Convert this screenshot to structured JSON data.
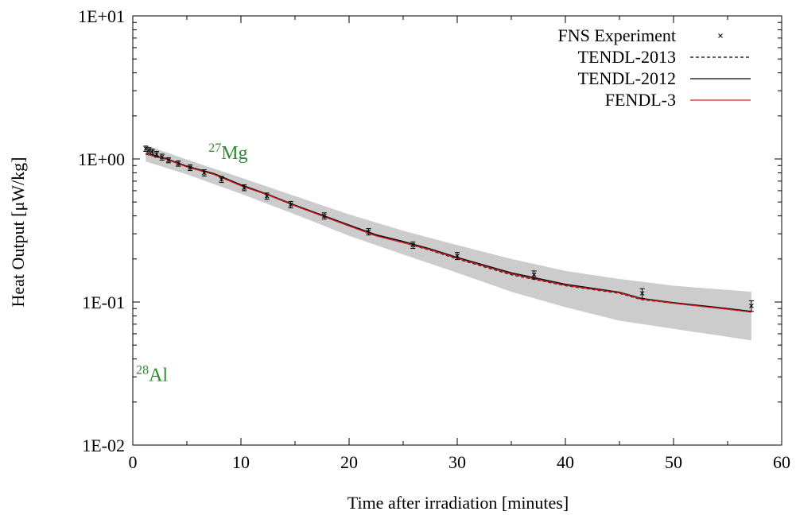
{
  "chart_data": {
    "type": "line",
    "xlabel": "Time after irradiation [minutes]",
    "ylabel": "Heat Output [μW/kg]",
    "xlim": [
      0,
      60
    ],
    "ylim": [
      0.01,
      10
    ],
    "y_scale": "log",
    "x_ticks": [
      "0",
      "10",
      "20",
      "30",
      "40",
      "50",
      "60"
    ],
    "x_tick_values": [
      0,
      10,
      20,
      30,
      40,
      50,
      60
    ],
    "y_ticks": [
      "1E-02",
      "1E-01",
      "1E+00",
      "1E+01"
    ],
    "y_tick_values": [
      0.01,
      0.1,
      1,
      10
    ],
    "grid": false,
    "legend_position": "top-right",
    "legend": [
      {
        "label": "FNS Experiment",
        "style": "marker",
        "color": "#000000"
      },
      {
        "label": "TENDL-2013",
        "style": "dashed",
        "color": "#000000"
      },
      {
        "label": "TENDL-2012",
        "style": "solid",
        "color": "#000000"
      },
      {
        "label": "FENDL-3",
        "style": "solid",
        "color": "#d62020"
      }
    ],
    "annotations": [
      {
        "sup": "27",
        "base": "Mg",
        "x": 7.0,
        "y": 1.0
      },
      {
        "sup": "28",
        "base": "Al",
        "x": 0.3,
        "y": 0.028
      }
    ],
    "experiment": {
      "x": [
        1.2,
        1.5,
        1.8,
        2.2,
        2.7,
        3.3,
        4.2,
        5.3,
        6.6,
        8.2,
        10.3,
        12.4,
        14.6,
        17.7,
        21.8,
        25.9,
        30.0,
        37.1,
        47.1,
        57.2
      ],
      "y": [
        1.18,
        1.15,
        1.12,
        1.08,
        1.03,
        0.98,
        0.93,
        0.87,
        0.8,
        0.72,
        0.63,
        0.55,
        0.48,
        0.4,
        0.31,
        0.25,
        0.21,
        0.155,
        0.115,
        0.094
      ],
      "err": [
        0.05,
        0.05,
        0.05,
        0.05,
        0.05,
        0.04,
        0.04,
        0.04,
        0.04,
        0.035,
        0.03,
        0.028,
        0.025,
        0.02,
        0.016,
        0.013,
        0.012,
        0.01,
        0.009,
        0.008
      ]
    },
    "series": [
      {
        "name": "TENDL-2013",
        "x": [
          1.2,
          3,
          5,
          7.5,
          10,
          12.5,
          15,
          17.5,
          20,
          22.5,
          25,
          27.5,
          30,
          35,
          40,
          45,
          47,
          50,
          55,
          57.2
        ],
        "y": [
          1.08,
          1.0,
          0.88,
          0.78,
          0.65,
          0.56,
          0.47,
          0.4,
          0.34,
          0.29,
          0.26,
          0.23,
          0.2,
          0.155,
          0.13,
          0.115,
          0.104,
          0.098,
          0.089,
          0.085
        ]
      },
      {
        "name": "TENDL-2012",
        "x": [
          1.2,
          3,
          5,
          7.5,
          10,
          12.5,
          15,
          17.5,
          20,
          22.5,
          25,
          27.5,
          30,
          35,
          40,
          45,
          47,
          50,
          55,
          57.2
        ],
        "y": [
          1.09,
          1.01,
          0.89,
          0.79,
          0.66,
          0.565,
          0.475,
          0.405,
          0.345,
          0.295,
          0.265,
          0.235,
          0.205,
          0.16,
          0.133,
          0.117,
          0.106,
          0.099,
          0.09,
          0.086
        ]
      },
      {
        "name": "FENDL-3",
        "x": [
          1.2,
          3,
          5,
          7.5,
          10,
          12.5,
          15,
          17.5,
          20,
          22.5,
          25,
          27.5,
          30,
          35,
          40,
          45,
          47,
          50,
          55,
          57.2
        ],
        "y": [
          1.085,
          1.0,
          0.88,
          0.78,
          0.65,
          0.56,
          0.47,
          0.4,
          0.34,
          0.29,
          0.26,
          0.232,
          0.202,
          0.157,
          0.131,
          0.116,
          0.105,
          0.098,
          0.089,
          0.085
        ]
      }
    ],
    "uncertainty_band": {
      "x": [
        1.2,
        5,
        10,
        15,
        20,
        25,
        30,
        35,
        40,
        45,
        50,
        57.2
      ],
      "upper": [
        1.25,
        0.99,
        0.74,
        0.55,
        0.41,
        0.315,
        0.25,
        0.2,
        0.165,
        0.145,
        0.13,
        0.118
      ],
      "lower": [
        0.96,
        0.78,
        0.57,
        0.41,
        0.29,
        0.215,
        0.16,
        0.118,
        0.092,
        0.074,
        0.065,
        0.054
      ]
    },
    "colors": {
      "band": "#cccccc",
      "fendl": "#d62020",
      "annotation": "#2e8b2e"
    }
  }
}
